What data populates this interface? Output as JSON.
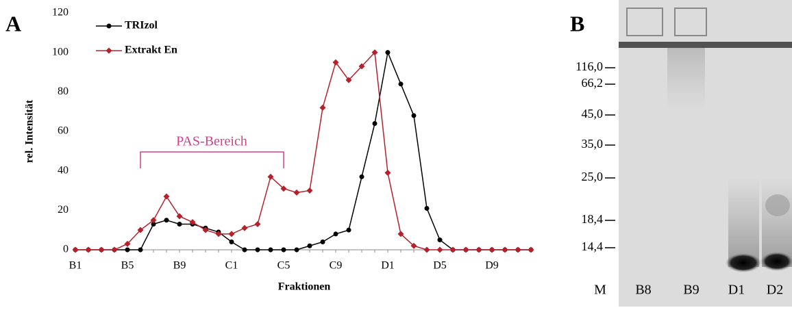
{
  "chart_data": {
    "type": "line",
    "panel_label": "A",
    "x_label": "Fraktionen",
    "y_label": "rel. Intensität",
    "annotation": "PAS-Bereich",
    "categories": [
      "B1",
      null,
      null,
      null,
      "B5",
      null,
      null,
      null,
      "B9",
      null,
      null,
      null,
      "C1",
      null,
      null,
      null,
      "C5",
      null,
      null,
      null,
      "C9",
      null,
      null,
      null,
      "D1",
      null,
      null,
      null,
      "D5",
      null,
      null,
      null,
      "D9",
      null,
      null,
      null
    ],
    "series": [
      {
        "name": "TRIzol",
        "color": "#000000",
        "marker": "circle",
        "values": [
          0,
          0,
          0,
          0,
          0,
          0,
          13,
          15,
          13,
          13,
          11,
          9,
          4,
          0,
          0,
          0,
          0,
          0,
          2,
          4,
          8,
          10,
          37,
          64,
          100,
          84,
          68,
          21,
          5,
          0,
          0,
          0,
          0,
          0,
          0,
          0
        ]
      },
      {
        "name": "Extrakt En",
        "color": "#b5202a",
        "marker": "diamond",
        "values": [
          0,
          0,
          0,
          0,
          3,
          10,
          15,
          27,
          17,
          14,
          10,
          8,
          8,
          11,
          13,
          37,
          31,
          29,
          30,
          72,
          95,
          86,
          93,
          100,
          39,
          8,
          2,
          0,
          0,
          0,
          0,
          0,
          0,
          0,
          0,
          0
        ]
      }
    ],
    "ylim": [
      0,
      120
    ],
    "yticks": [
      0,
      20,
      40,
      60,
      80,
      100,
      120
    ],
    "grid": false,
    "legend": "top-left"
  },
  "gel": {
    "panel_label": "B",
    "markers": [
      "116,0",
      "66,2",
      "45,0",
      "35,0",
      "25,0",
      "18,4",
      "14,4"
    ],
    "lanes": [
      "M",
      "B8",
      "B9",
      "D1",
      "D2"
    ]
  }
}
